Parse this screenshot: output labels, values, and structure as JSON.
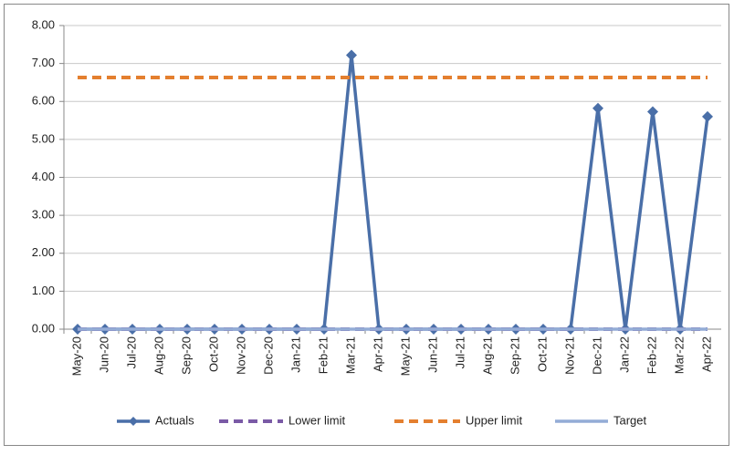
{
  "chart_data": {
    "type": "line",
    "categories": [
      "May-20",
      "Jun-20",
      "Jul-20",
      "Aug-20",
      "Sep-20",
      "Oct-20",
      "Nov-20",
      "Dec-20",
      "Jan-21",
      "Feb-21",
      "Mar-21",
      "Apr-21",
      "May-21",
      "Jun-21",
      "Jul-21",
      "Aug-21",
      "Sep-21",
      "Oct-21",
      "Nov-21",
      "Dec-21",
      "Jan-22",
      "Feb-22",
      "Mar-22",
      "Apr-22"
    ],
    "series": [
      {
        "name": "Actuals",
        "color": "#4a6fa8",
        "dash": false,
        "marker": "diamond",
        "values": [
          0,
          0,
          0,
          0,
          0,
          0,
          0,
          0,
          0,
          0,
          7.22,
          0,
          0,
          0,
          0,
          0,
          0,
          0,
          0,
          5.82,
          0,
          5.73,
          0,
          5.6
        ]
      },
      {
        "name": "Lower limit",
        "color": "#7a5aa6",
        "dash": true,
        "values": [
          0,
          0,
          0,
          0,
          0,
          0,
          0,
          0,
          0,
          0,
          0,
          0,
          0,
          0,
          0,
          0,
          0,
          0,
          0,
          0,
          0,
          0,
          0,
          0
        ]
      },
      {
        "name": "Upper limit",
        "color": "#e47f2f",
        "dash": true,
        "values": [
          6.63,
          6.63,
          6.63,
          6.63,
          6.63,
          6.63,
          6.63,
          6.63,
          6.63,
          6.63,
          6.63,
          6.63,
          6.63,
          6.63,
          6.63,
          6.63,
          6.63,
          6.63,
          6.63,
          6.63,
          6.63,
          6.63,
          6.63,
          6.63
        ]
      },
      {
        "name": "Target",
        "color": "#93acd6",
        "dash": false,
        "values": [
          0,
          0,
          0,
          0,
          0,
          0,
          0,
          0,
          0,
          0,
          0,
          0,
          0,
          0,
          0,
          0,
          0,
          0,
          0,
          0,
          0,
          0,
          0,
          0
        ]
      }
    ],
    "ylim": [
      0,
      8
    ],
    "yticks": [
      {
        "value": 0,
        "label": "0.00"
      },
      {
        "value": 1,
        "label": "1.00"
      },
      {
        "value": 2,
        "label": "2.00"
      },
      {
        "value": 3,
        "label": "3.00"
      },
      {
        "value": 4,
        "label": "4.00"
      },
      {
        "value": 5,
        "label": "5.00"
      },
      {
        "value": 6,
        "label": "6.00"
      },
      {
        "value": 7,
        "label": "7.00"
      },
      {
        "value": 8,
        "label": "8.00"
      }
    ],
    "grid": true,
    "legend": "bottom"
  }
}
